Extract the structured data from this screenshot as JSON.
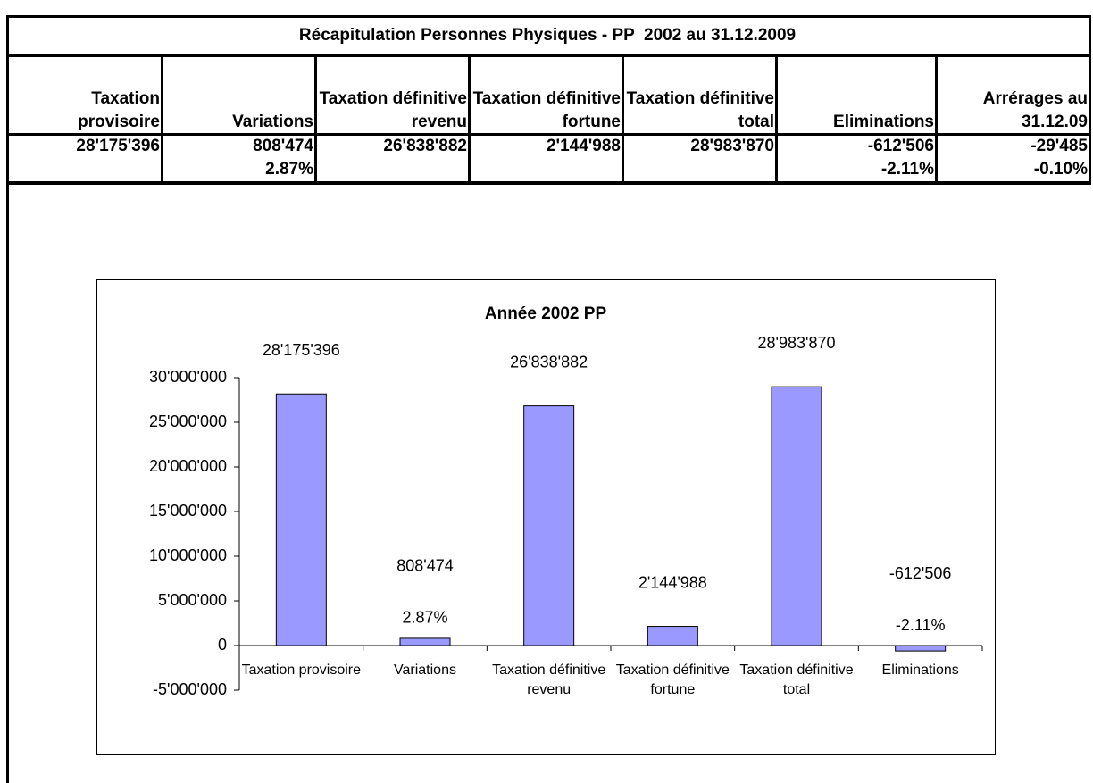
{
  "table": {
    "title": "Récapitulation Personnes Physiques - PP  2002 au 31.12.2009",
    "headers": [
      "Taxation provisoire",
      "Variations",
      "Taxation définitive revenu",
      "Taxation définitive fortune",
      "Taxation définitive total",
      "Eliminations",
      "Arrérages au 31.12.09"
    ],
    "rows": [
      [
        {
          "value": "28'175'396"
        },
        {
          "value": "808'474",
          "percent": "2.87%"
        },
        {
          "value": "26'838'882"
        },
        {
          "value": "2'144'988"
        },
        {
          "value": "28'983'870"
        },
        {
          "value": "-612'506",
          "percent": "-2.11%"
        },
        {
          "value": "-29'485",
          "percent": "-0.10%"
        }
      ]
    ]
  },
  "chart_data": {
    "type": "bar",
    "title": "Année 2002 PP",
    "categories": [
      "Taxation provisoire",
      "Variations",
      "Taxation définitive revenu",
      "Taxation définitive fortune",
      "Taxation définitive total",
      "Eliminations"
    ],
    "values": [
      28175396,
      808474,
      26838882,
      2144988,
      28983870,
      -612506
    ],
    "value_labels": [
      "28'175'396",
      "808'474",
      "26'838'882",
      "2'144'988",
      "28'983'870",
      "-612'506"
    ],
    "percent_labels": [
      null,
      "2.87%",
      null,
      null,
      null,
      "-2.11%"
    ],
    "color": "#9999ff",
    "ylim": [
      -5000000,
      30000000
    ],
    "yticks": [
      {
        "value": -5000000,
        "label": "-5'000'000"
      },
      0,
      {
        "value": 5000000,
        "label": "5'000'000"
      },
      {
        "value": 10000000,
        "label": "10'000'000"
      },
      {
        "value": 15000000,
        "label": "15'000'000"
      },
      {
        "value": 20000000,
        "label": "20'000'000"
      },
      {
        "value": 25000000,
        "label": "25'000'000"
      },
      {
        "value": 30000000,
        "label": "30'000'000"
      }
    ]
  }
}
